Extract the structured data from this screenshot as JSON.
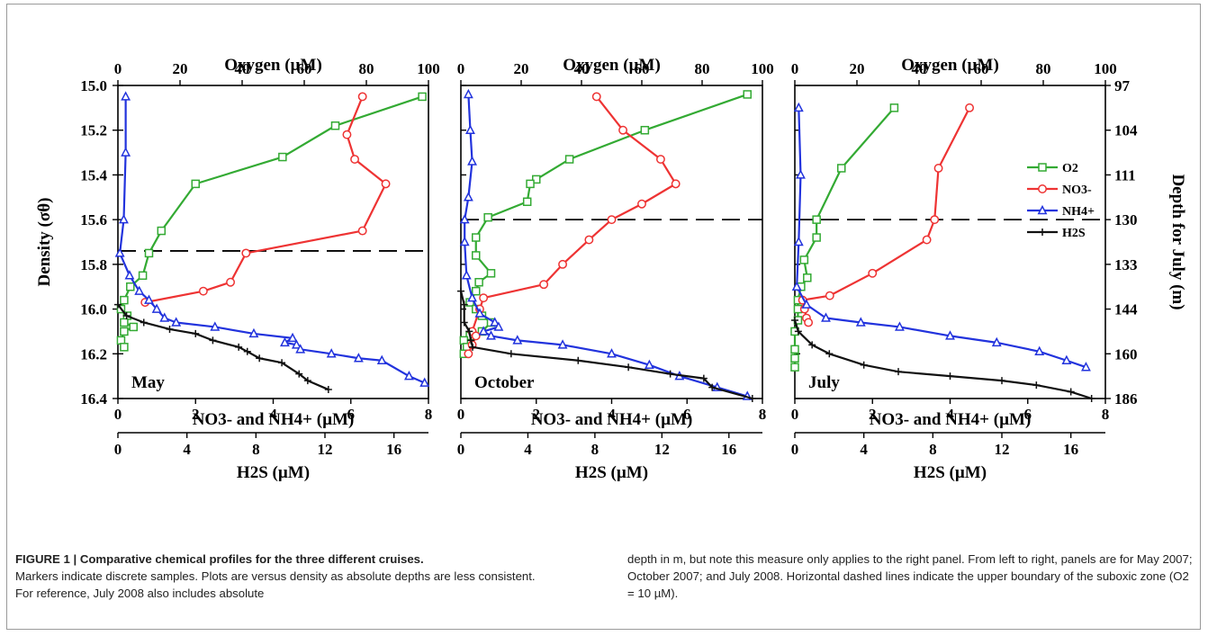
{
  "figure": {
    "axis_labels": {
      "oxygen": "Oxygen (µM)",
      "density": "Density (σθ)",
      "depth": "Depth for July (m)",
      "no3_nh4": "NO3- and NH4+ (µM)",
      "h2s": "H2S (µM)"
    },
    "legend": [
      {
        "id": "o2",
        "label": "O2",
        "color": "#33aa33",
        "marker": "square"
      },
      {
        "id": "no3",
        "label": "NO3-",
        "color": "#ee3333",
        "marker": "circle"
      },
      {
        "id": "nh4",
        "label": "NH4+",
        "color": "#2233dd",
        "marker": "triangle"
      },
      {
        "id": "h2s",
        "label": "H2S",
        "color": "#111111",
        "marker": "plus"
      }
    ],
    "density_ticks": [
      "15.0",
      "15.2",
      "15.4",
      "15.6",
      "15.8",
      "16.0",
      "16.2",
      "16.4"
    ],
    "depth_ticks": [
      "97",
      "104",
      "111",
      "130",
      "133",
      "144",
      "160",
      "186"
    ],
    "oxygen_ticks": [
      "0",
      "20",
      "40",
      "60",
      "80",
      "100"
    ],
    "n_ticks": [
      "0",
      "2",
      "4",
      "6",
      "8"
    ],
    "h2s_ticks": [
      "0",
      "4",
      "8",
      "12",
      "16"
    ]
  },
  "chart_data": [
    {
      "type": "line",
      "panel_label": "May",
      "dashed_line_density": 15.74,
      "ylim": [
        15.0,
        16.4
      ],
      "oxygen_xlim": [
        0,
        100
      ],
      "n_xlim": [
        0,
        8
      ],
      "h2s_xlim": [
        0,
        18
      ],
      "series": [
        {
          "name": "O2",
          "axis": "oxygen",
          "points": [
            [
              98,
              15.05
            ],
            [
              70,
              15.18
            ],
            [
              53,
              15.32
            ],
            [
              25,
              15.44
            ],
            [
              14,
              15.65
            ],
            [
              10,
              15.75
            ],
            [
              8,
              15.85
            ],
            [
              4,
              15.9
            ],
            [
              2,
              15.96
            ],
            [
              1,
              16.0
            ],
            [
              3,
              16.03
            ],
            [
              2,
              16.06
            ],
            [
              5,
              16.08
            ],
            [
              2,
              16.1
            ],
            [
              1,
              16.14
            ],
            [
              2,
              16.17
            ]
          ]
        },
        {
          "name": "NO3-",
          "axis": "n",
          "points": [
            [
              6.3,
              15.05
            ],
            [
              5.9,
              15.22
            ],
            [
              6.1,
              15.33
            ],
            [
              6.9,
              15.44
            ],
            [
              6.3,
              15.65
            ],
            [
              3.3,
              15.75
            ],
            [
              2.9,
              15.88
            ],
            [
              2.2,
              15.92
            ],
            [
              0.7,
              15.97
            ]
          ]
        },
        {
          "name": "NH4+",
          "axis": "n",
          "points": [
            [
              0.2,
              15.05
            ],
            [
              0.2,
              15.3
            ],
            [
              0.15,
              15.6
            ],
            [
              0.05,
              15.75
            ],
            [
              0.3,
              15.85
            ],
            [
              0.55,
              15.92
            ],
            [
              0.8,
              15.96
            ],
            [
              1.0,
              16.0
            ],
            [
              1.2,
              16.04
            ],
            [
              1.5,
              16.06
            ],
            [
              2.5,
              16.08
            ],
            [
              3.5,
              16.11
            ],
            [
              4.5,
              16.13
            ],
            [
              4.3,
              16.15
            ],
            [
              4.6,
              16.16
            ],
            [
              4.7,
              16.18
            ],
            [
              5.5,
              16.2
            ],
            [
              6.2,
              16.22
            ],
            [
              6.8,
              16.23
            ],
            [
              7.5,
              16.3
            ],
            [
              7.9,
              16.33
            ]
          ]
        },
        {
          "name": "H2S",
          "axis": "h2s",
          "points": [
            [
              0,
              15.98
            ],
            [
              0.5,
              16.03
            ],
            [
              1.5,
              16.06
            ],
            [
              3,
              16.09
            ],
            [
              4.5,
              16.11
            ],
            [
              5.5,
              16.14
            ],
            [
              7,
              16.17
            ],
            [
              7.5,
              16.19
            ],
            [
              8.2,
              16.22
            ],
            [
              9.5,
              16.24
            ],
            [
              10.5,
              16.29
            ],
            [
              11,
              16.32
            ],
            [
              12.2,
              16.36
            ]
          ]
        }
      ]
    },
    {
      "type": "line",
      "panel_label": "October",
      "dashed_line_density": 15.6,
      "ylim": [
        15.0,
        16.4
      ],
      "oxygen_xlim": [
        0,
        100
      ],
      "n_xlim": [
        0,
        8
      ],
      "h2s_xlim": [
        0,
        18
      ],
      "series": [
        {
          "name": "O2",
          "axis": "oxygen",
          "points": [
            [
              95,
              15.04
            ],
            [
              61,
              15.2
            ],
            [
              36,
              15.33
            ],
            [
              25,
              15.42
            ],
            [
              23,
              15.44
            ],
            [
              22,
              15.52
            ],
            [
              9,
              15.59
            ],
            [
              5,
              15.68
            ],
            [
              5,
              15.76
            ],
            [
              10,
              15.84
            ],
            [
              6,
              15.88
            ],
            [
              5,
              15.92
            ],
            [
              3,
              15.97
            ],
            [
              5,
              16.0
            ],
            [
              7,
              16.03
            ],
            [
              10,
              16.06
            ],
            [
              7,
              16.1
            ],
            [
              3,
              16.12
            ],
            [
              1,
              16.14
            ],
            [
              2,
              16.17
            ],
            [
              1,
              16.2
            ]
          ]
        },
        {
          "name": "NO3-",
          "axis": "n",
          "points": [
            [
              3.6,
              15.05
            ],
            [
              4.3,
              15.2
            ],
            [
              5.3,
              15.33
            ],
            [
              5.7,
              15.44
            ],
            [
              4.8,
              15.53
            ],
            [
              4.0,
              15.6
            ],
            [
              3.4,
              15.69
            ],
            [
              2.7,
              15.8
            ],
            [
              2.2,
              15.89
            ],
            [
              0.6,
              15.95
            ],
            [
              0.5,
              16.0
            ],
            [
              0.3,
              16.1
            ],
            [
              0.4,
              16.12
            ],
            [
              0.3,
              16.16
            ],
            [
              0.2,
              16.2
            ]
          ]
        },
        {
          "name": "NH4+",
          "axis": "n",
          "points": [
            [
              0.2,
              15.04
            ],
            [
              0.25,
              15.2
            ],
            [
              0.3,
              15.34
            ],
            [
              0.2,
              15.5
            ],
            [
              0.1,
              15.6
            ],
            [
              0.1,
              15.7
            ],
            [
              0.15,
              15.85
            ],
            [
              0.3,
              15.95
            ],
            [
              0.5,
              16.02
            ],
            [
              0.9,
              16.06
            ],
            [
              1.0,
              16.08
            ],
            [
              0.6,
              16.1
            ],
            [
              0.8,
              16.12
            ],
            [
              1.5,
              16.14
            ],
            [
              2.7,
              16.16
            ],
            [
              4.0,
              16.2
            ],
            [
              5.0,
              16.25
            ],
            [
              5.8,
              16.3
            ],
            [
              6.8,
              16.35
            ],
            [
              7.6,
              16.39
            ]
          ]
        },
        {
          "name": "H2S",
          "axis": "h2s",
          "points": [
            [
              0,
              15.92
            ],
            [
              0.2,
              15.98
            ],
            [
              0.2,
              16.06
            ],
            [
              0.5,
              16.1
            ],
            [
              0.6,
              16.14
            ],
            [
              0.7,
              16.17
            ],
            [
              3,
              16.2
            ],
            [
              7,
              16.23
            ],
            [
              10,
              16.26
            ],
            [
              12.5,
              16.29
            ],
            [
              14.5,
              16.31
            ],
            [
              15,
              16.35
            ],
            [
              17.4,
              16.4
            ]
          ]
        }
      ]
    },
    {
      "type": "line",
      "panel_label": "July",
      "dashed_line_density": 15.6,
      "ylim": [
        15.0,
        16.4
      ],
      "oxygen_xlim": [
        0,
        100
      ],
      "n_xlim": [
        0,
        8
      ],
      "h2s_xlim": [
        0,
        18
      ],
      "series": [
        {
          "name": "O2",
          "axis": "oxygen",
          "points": [
            [
              32,
              15.1
            ],
            [
              15,
              15.37
            ],
            [
              7,
              15.6
            ],
            [
              7,
              15.68
            ],
            [
              3,
              15.78
            ],
            [
              4,
              15.86
            ],
            [
              2,
              15.9
            ],
            [
              1,
              15.96
            ],
            [
              1,
              16.0
            ],
            [
              1,
              16.05
            ],
            [
              0,
              16.1
            ],
            [
              0,
              16.18
            ],
            [
              0,
              16.22
            ],
            [
              0,
              16.26
            ]
          ]
        },
        {
          "name": "NO3-",
          "axis": "n",
          "points": [
            [
              4.5,
              15.1
            ],
            [
              3.7,
              15.37
            ],
            [
              3.6,
              15.6
            ],
            [
              3.4,
              15.69
            ],
            [
              2.0,
              15.84
            ],
            [
              0.9,
              15.94
            ],
            [
              0.2,
              15.96
            ],
            [
              0.25,
              16.0
            ],
            [
              0.3,
              16.04
            ],
            [
              0.35,
              16.06
            ]
          ]
        },
        {
          "name": "NH4+",
          "axis": "n",
          "points": [
            [
              0.1,
              15.1
            ],
            [
              0.15,
              15.4
            ],
            [
              0.1,
              15.7
            ],
            [
              0.05,
              15.9
            ],
            [
              0.3,
              15.98
            ],
            [
              0.8,
              16.04
            ],
            [
              1.7,
              16.06
            ],
            [
              2.7,
              16.08
            ],
            [
              4.0,
              16.12
            ],
            [
              5.2,
              16.15
            ],
            [
              6.3,
              16.19
            ],
            [
              7.0,
              16.23
            ],
            [
              7.5,
              16.26
            ]
          ]
        },
        {
          "name": "H2S",
          "axis": "h2s",
          "points": [
            [
              0,
              16.05
            ],
            [
              0.2,
              16.1
            ],
            [
              1,
              16.16
            ],
            [
              2,
              16.2
            ],
            [
              4,
              16.25
            ],
            [
              6,
              16.28
            ],
            [
              9,
              16.3
            ],
            [
              12,
              16.32
            ],
            [
              14,
              16.34
            ],
            [
              16,
              16.37
            ],
            [
              17.2,
              16.4
            ]
          ]
        }
      ]
    }
  ],
  "caption": {
    "title": "FIGURE 1 | Comparative chemical profiles for the three different cruises.",
    "body_left": "Markers indicate discrete samples. Plots are versus density as absolute depths are less consistent. For reference, July 2008 also includes absolute",
    "body_right": "depth in m, but note this measure only applies to the right panel. From left to right, panels are for May 2007; October 2007; and July 2008. Horizontal dashed lines indicate the upper boundary of the suboxic zone (O2 = 10 µM)."
  }
}
